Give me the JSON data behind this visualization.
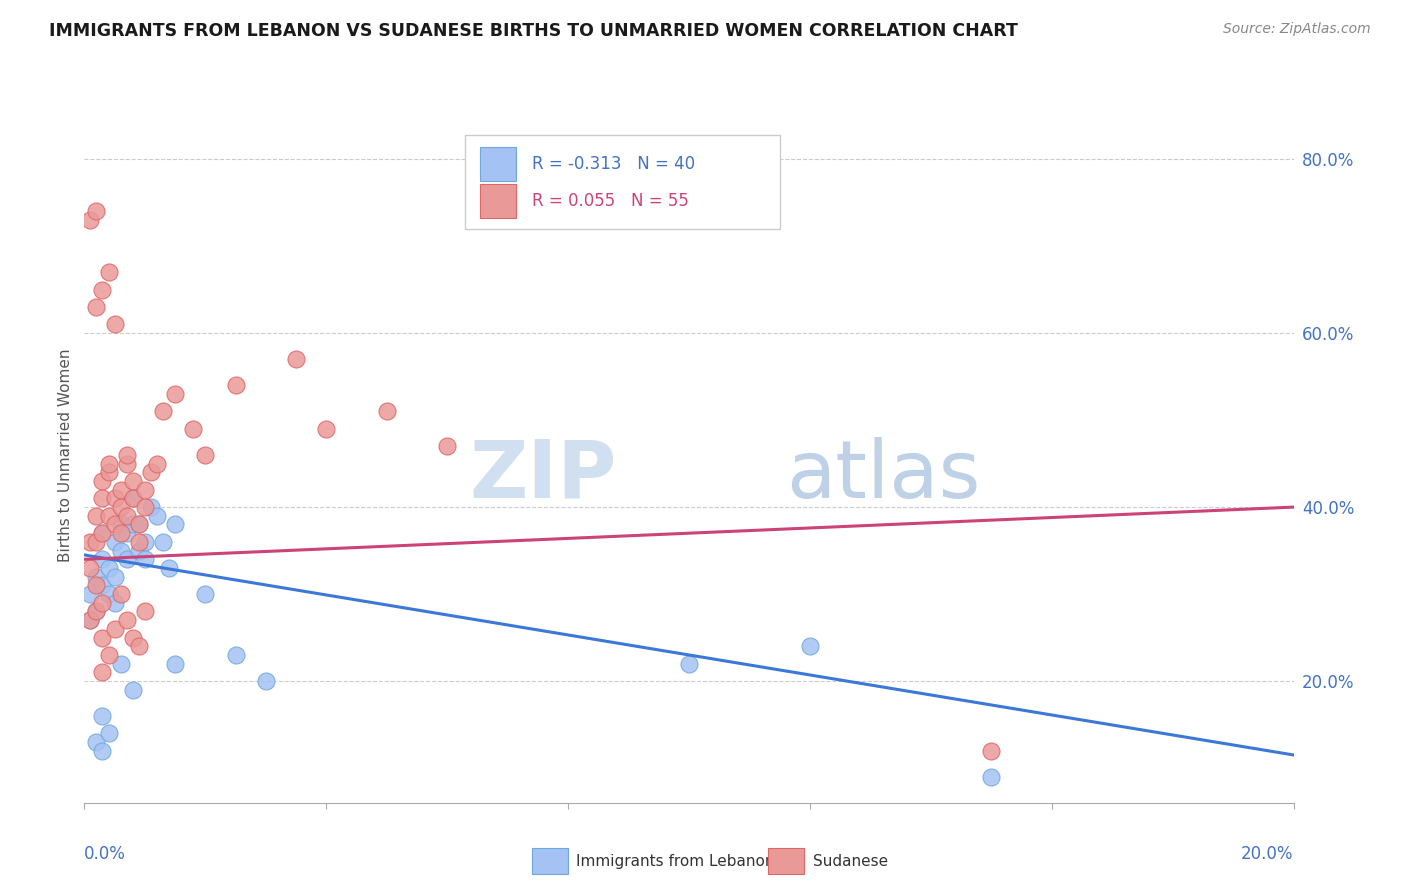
{
  "title": "IMMIGRANTS FROM LEBANON VS SUDANESE BIRTHS TO UNMARRIED WOMEN CORRELATION CHART",
  "source": "Source: ZipAtlas.com",
  "ylabel_label": "Births to Unmarried Women",
  "right_ytick_labels": [
    "20.0%",
    "40.0%",
    "60.0%",
    "80.0%"
  ],
  "right_ytick_values": [
    0.2,
    0.4,
    0.6,
    0.8
  ],
  "xmin": 0.0,
  "xmax": 0.2,
  "ymin": 0.06,
  "ymax": 0.86,
  "legend_blue_label": "R = -0.313   N = 40",
  "legend_pink_label": "R = 0.055   N = 55",
  "blue_color": "#a4c2f4",
  "pink_color": "#ea9999",
  "blue_edge_color": "#6fa8dc",
  "pink_edge_color": "#e06666",
  "trendline_blue_color": "#3c78d8",
  "trendline_pink_color": "#cc4477",
  "legend_label_blue": "Immigrants from Lebanon",
  "legend_label_pink": "Sudanese",
  "blue_trendline_x0": 0.0,
  "blue_trendline_x1": 0.2,
  "blue_trendline_y0": 0.345,
  "blue_trendline_y1": 0.115,
  "pink_trendline_x0": 0.0,
  "pink_trendline_x1": 0.2,
  "pink_trendline_y0": 0.34,
  "pink_trendline_y1": 0.4,
  "blue_scatter_x": [
    0.001,
    0.001,
    0.002,
    0.002,
    0.003,
    0.003,
    0.003,
    0.004,
    0.004,
    0.005,
    0.005,
    0.005,
    0.006,
    0.006,
    0.007,
    0.007,
    0.008,
    0.008,
    0.009,
    0.009,
    0.01,
    0.01,
    0.011,
    0.012,
    0.013,
    0.014,
    0.015,
    0.02,
    0.025,
    0.03,
    0.002,
    0.003,
    0.004,
    0.003,
    0.006,
    0.008,
    0.015,
    0.1,
    0.12,
    0.15
  ],
  "blue_scatter_y": [
    0.3,
    0.27,
    0.28,
    0.32,
    0.31,
    0.34,
    0.37,
    0.3,
    0.33,
    0.29,
    0.32,
    0.36,
    0.35,
    0.38,
    0.34,
    0.37,
    0.38,
    0.41,
    0.35,
    0.38,
    0.36,
    0.34,
    0.4,
    0.39,
    0.36,
    0.33,
    0.38,
    0.3,
    0.23,
    0.2,
    0.13,
    0.16,
    0.14,
    0.12,
    0.22,
    0.19,
    0.22,
    0.22,
    0.24,
    0.09
  ],
  "pink_scatter_x": [
    0.001,
    0.001,
    0.002,
    0.002,
    0.003,
    0.003,
    0.003,
    0.004,
    0.004,
    0.004,
    0.005,
    0.005,
    0.006,
    0.006,
    0.006,
    0.007,
    0.007,
    0.007,
    0.008,
    0.008,
    0.009,
    0.009,
    0.01,
    0.01,
    0.011,
    0.012,
    0.013,
    0.015,
    0.018,
    0.02,
    0.001,
    0.002,
    0.003,
    0.004,
    0.005,
    0.002,
    0.003,
    0.006,
    0.007,
    0.008,
    0.009,
    0.01,
    0.04,
    0.05,
    0.06,
    0.035,
    0.025,
    0.002,
    0.003,
    0.004,
    0.005,
    0.001,
    0.002,
    0.15,
    0.003
  ],
  "pink_scatter_y": [
    0.33,
    0.36,
    0.36,
    0.39,
    0.43,
    0.37,
    0.41,
    0.44,
    0.39,
    0.45,
    0.38,
    0.41,
    0.37,
    0.4,
    0.42,
    0.45,
    0.39,
    0.46,
    0.41,
    0.43,
    0.38,
    0.36,
    0.4,
    0.42,
    0.44,
    0.45,
    0.51,
    0.53,
    0.49,
    0.46,
    0.27,
    0.28,
    0.25,
    0.23,
    0.26,
    0.31,
    0.29,
    0.3,
    0.27,
    0.25,
    0.24,
    0.28,
    0.49,
    0.51,
    0.47,
    0.57,
    0.54,
    0.63,
    0.65,
    0.67,
    0.61,
    0.73,
    0.74,
    0.12,
    0.21
  ]
}
